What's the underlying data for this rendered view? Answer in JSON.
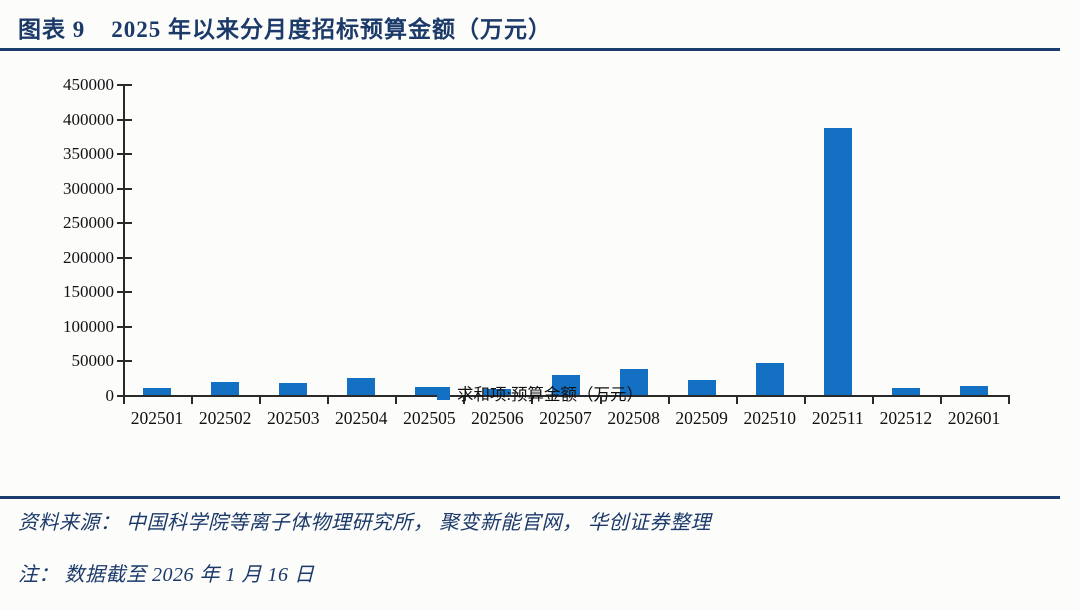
{
  "header": {
    "figure_label": "图表 9",
    "title": "2025 年以来分月度招标预算金额（万元）"
  },
  "chart_data": {
    "type": "bar",
    "title": "2025 年以来分月度招标预算金额（万元）",
    "categories": [
      "202501",
      "202502",
      "202503",
      "202504",
      "202505",
      "202506",
      "202507",
      "202508",
      "202509",
      "202510",
      "202511",
      "202512",
      "202601"
    ],
    "values": [
      10000,
      19000,
      17000,
      24000,
      11000,
      9000,
      29000,
      37500,
      21500,
      46000,
      387000,
      10500,
      13000
    ],
    "series_name": "求和项:预算金额（万元）",
    "xlabel": "",
    "ylabel": "",
    "ylim": [
      0,
      450000
    ],
    "ytick_step": 50000,
    "yticks": [
      0,
      50000,
      100000,
      150000,
      200000,
      250000,
      300000,
      350000,
      400000,
      450000
    ],
    "grid": false,
    "legend_position": "bottom",
    "bar_color": "#1370c2"
  },
  "legend": {
    "label": "求和项:预算金额（万元）",
    "marker_color": "#1370c2"
  },
  "footer": {
    "source": "资料来源： 中国科学院等离子体物理研究所， 聚变新能官网， 华创证券整理",
    "note": "注： 数据截至 2026 年 1 月 16 日"
  },
  "colors": {
    "accent_navy": "#1b3a69",
    "axis_black": "#2a2a2a",
    "bar_blue": "#1370c2",
    "background": "#fcfcfb"
  }
}
